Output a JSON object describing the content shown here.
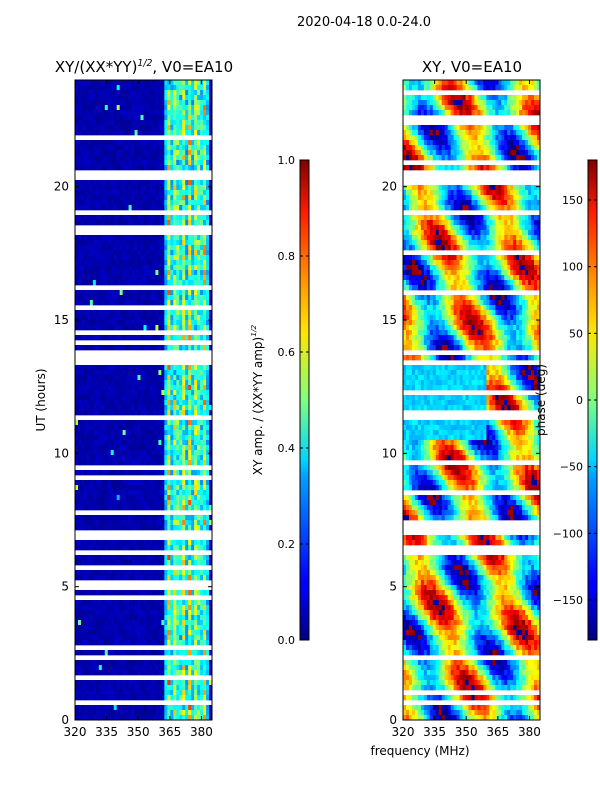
{
  "figure": {
    "suptitle": "2020-04-18 0.0-24.0",
    "shared_xlabel": "frequency (MHz)",
    "colormap": "jet"
  },
  "colorbar_amp": {
    "label": "XY amp. / (XX*YY amp)$^{1/2}$",
    "range": [
      0.0,
      1.0
    ],
    "ticks": [
      0.0,
      0.2,
      0.4,
      0.6,
      0.8,
      1.0
    ],
    "tick_labels": [
      "0.0",
      "0.2",
      "0.4",
      "0.6",
      "0.8",
      "1.0"
    ]
  },
  "colorbar_phase": {
    "label": "phase (deg)",
    "range": [
      -180,
      180
    ],
    "ticks": [
      -150,
      -100,
      -50,
      0,
      50,
      100,
      150
    ],
    "tick_labels": [
      "−150",
      "−100",
      "−50",
      "0",
      "50",
      "100",
      "150"
    ]
  },
  "chart_data": [
    {
      "type": "heatmap",
      "title": "XY/(XX*YY)$^{1/2}$, V0=EA10",
      "xlabel": "",
      "ylabel": "UT (hours)",
      "xlim": [
        320,
        385
      ],
      "ylim": [
        0,
        24
      ],
      "x_ticks": [
        320,
        335,
        350,
        365,
        380
      ],
      "x_tick_labels": [
        "320",
        "335",
        "350",
        "365",
        "380"
      ],
      "y_ticks": [
        0,
        5,
        10,
        15,
        20
      ],
      "y_tick_labels": [
        "0",
        "5",
        "10",
        "15",
        "20"
      ],
      "value_range": [
        0,
        1
      ],
      "description_values": {
        "background_level": 0.02,
        "active_band_mhz": [
          362,
          383
        ],
        "active_band_level": 0.5,
        "flagged_block_hours": [
          [
            2.3,
            2.5
          ],
          [
            13.6,
            13.9
          ],
          [
            20.3,
            20.6
          ]
        ]
      }
    },
    {
      "type": "heatmap",
      "title": "XY, V0=EA10",
      "xlabel": "frequency (MHz)",
      "ylabel": "",
      "xlim": [
        320,
        385
      ],
      "ylim": [
        0,
        24
      ],
      "x_ticks": [
        320,
        335,
        350,
        365,
        380
      ],
      "x_tick_labels": [
        "320",
        "335",
        "350",
        "365",
        "380"
      ],
      "y_ticks": [
        0,
        5,
        10,
        15,
        20
      ],
      "y_tick_labels": [
        "0",
        "5",
        "10",
        "15",
        "20"
      ],
      "value_range": [
        -180,
        180
      ],
      "description_values": {
        "flagged_block_hours": [
          [
            2.3,
            2.5
          ],
          [
            13.6,
            13.9
          ],
          [
            20.3,
            20.6
          ]
        ]
      }
    }
  ]
}
